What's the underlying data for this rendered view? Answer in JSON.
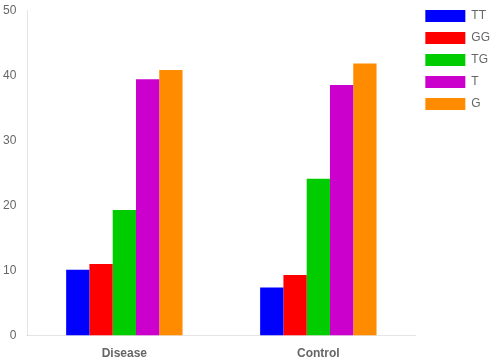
{
  "chart_data": {
    "type": "bar",
    "categories": [
      "Disease",
      "Control"
    ],
    "series": [
      {
        "name": "TT",
        "color": "#0000FF",
        "values": [
          10.1,
          7.4
        ]
      },
      {
        "name": "GG",
        "color": "#FF0000",
        "values": [
          11.0,
          9.3
        ]
      },
      {
        "name": "TG",
        "color": "#00CC00",
        "values": [
          19.3,
          24.1
        ]
      },
      {
        "name": "T",
        "color": "#CC00CC",
        "values": [
          39.4,
          38.5
        ]
      },
      {
        "name": "G",
        "color": "#FF8C00",
        "values": [
          40.8,
          41.8
        ]
      }
    ],
    "ylim": [
      0,
      50
    ],
    "yticks": [
      0,
      10,
      20,
      30,
      40,
      50
    ],
    "grid": false,
    "legend": "upper right"
  }
}
